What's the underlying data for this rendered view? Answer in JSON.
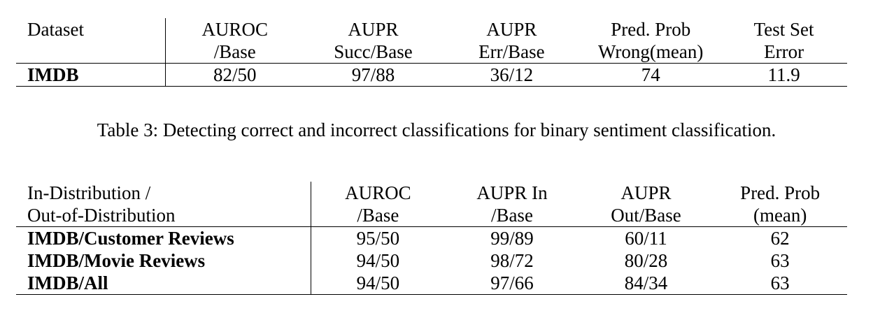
{
  "table1": {
    "headers": [
      [
        "Dataset",
        ""
      ],
      [
        "AUROC",
        "/Base"
      ],
      [
        "AUPR",
        "Succ/Base"
      ],
      [
        "AUPR",
        "Err/Base"
      ],
      [
        "Pred. Prob",
        "Wrong(mean)"
      ],
      [
        "Test Set",
        "Error"
      ]
    ],
    "rows": [
      [
        "IMDB",
        "82/50",
        "97/88",
        "36/12",
        "74",
        "11.9"
      ]
    ]
  },
  "caption": "Table 3: Detecting correct and incorrect classifications for binary sentiment classification.",
  "table2": {
    "headers": [
      [
        "In-Distribution /",
        "Out-of-Distribution"
      ],
      [
        "AUROC",
        "/Base"
      ],
      [
        "AUPR In",
        "/Base"
      ],
      [
        "AUPR",
        "Out/Base"
      ],
      [
        "Pred. Prob",
        "(mean)"
      ]
    ],
    "rows": [
      [
        "IMDB/Customer Reviews",
        "95/50",
        "99/89",
        "60/11",
        "62"
      ],
      [
        "IMDB/Movie Reviews",
        "94/50",
        "98/72",
        "80/28",
        "63"
      ],
      [
        "IMDB/All",
        "94/50",
        "97/66",
        "84/34",
        "63"
      ]
    ]
  }
}
